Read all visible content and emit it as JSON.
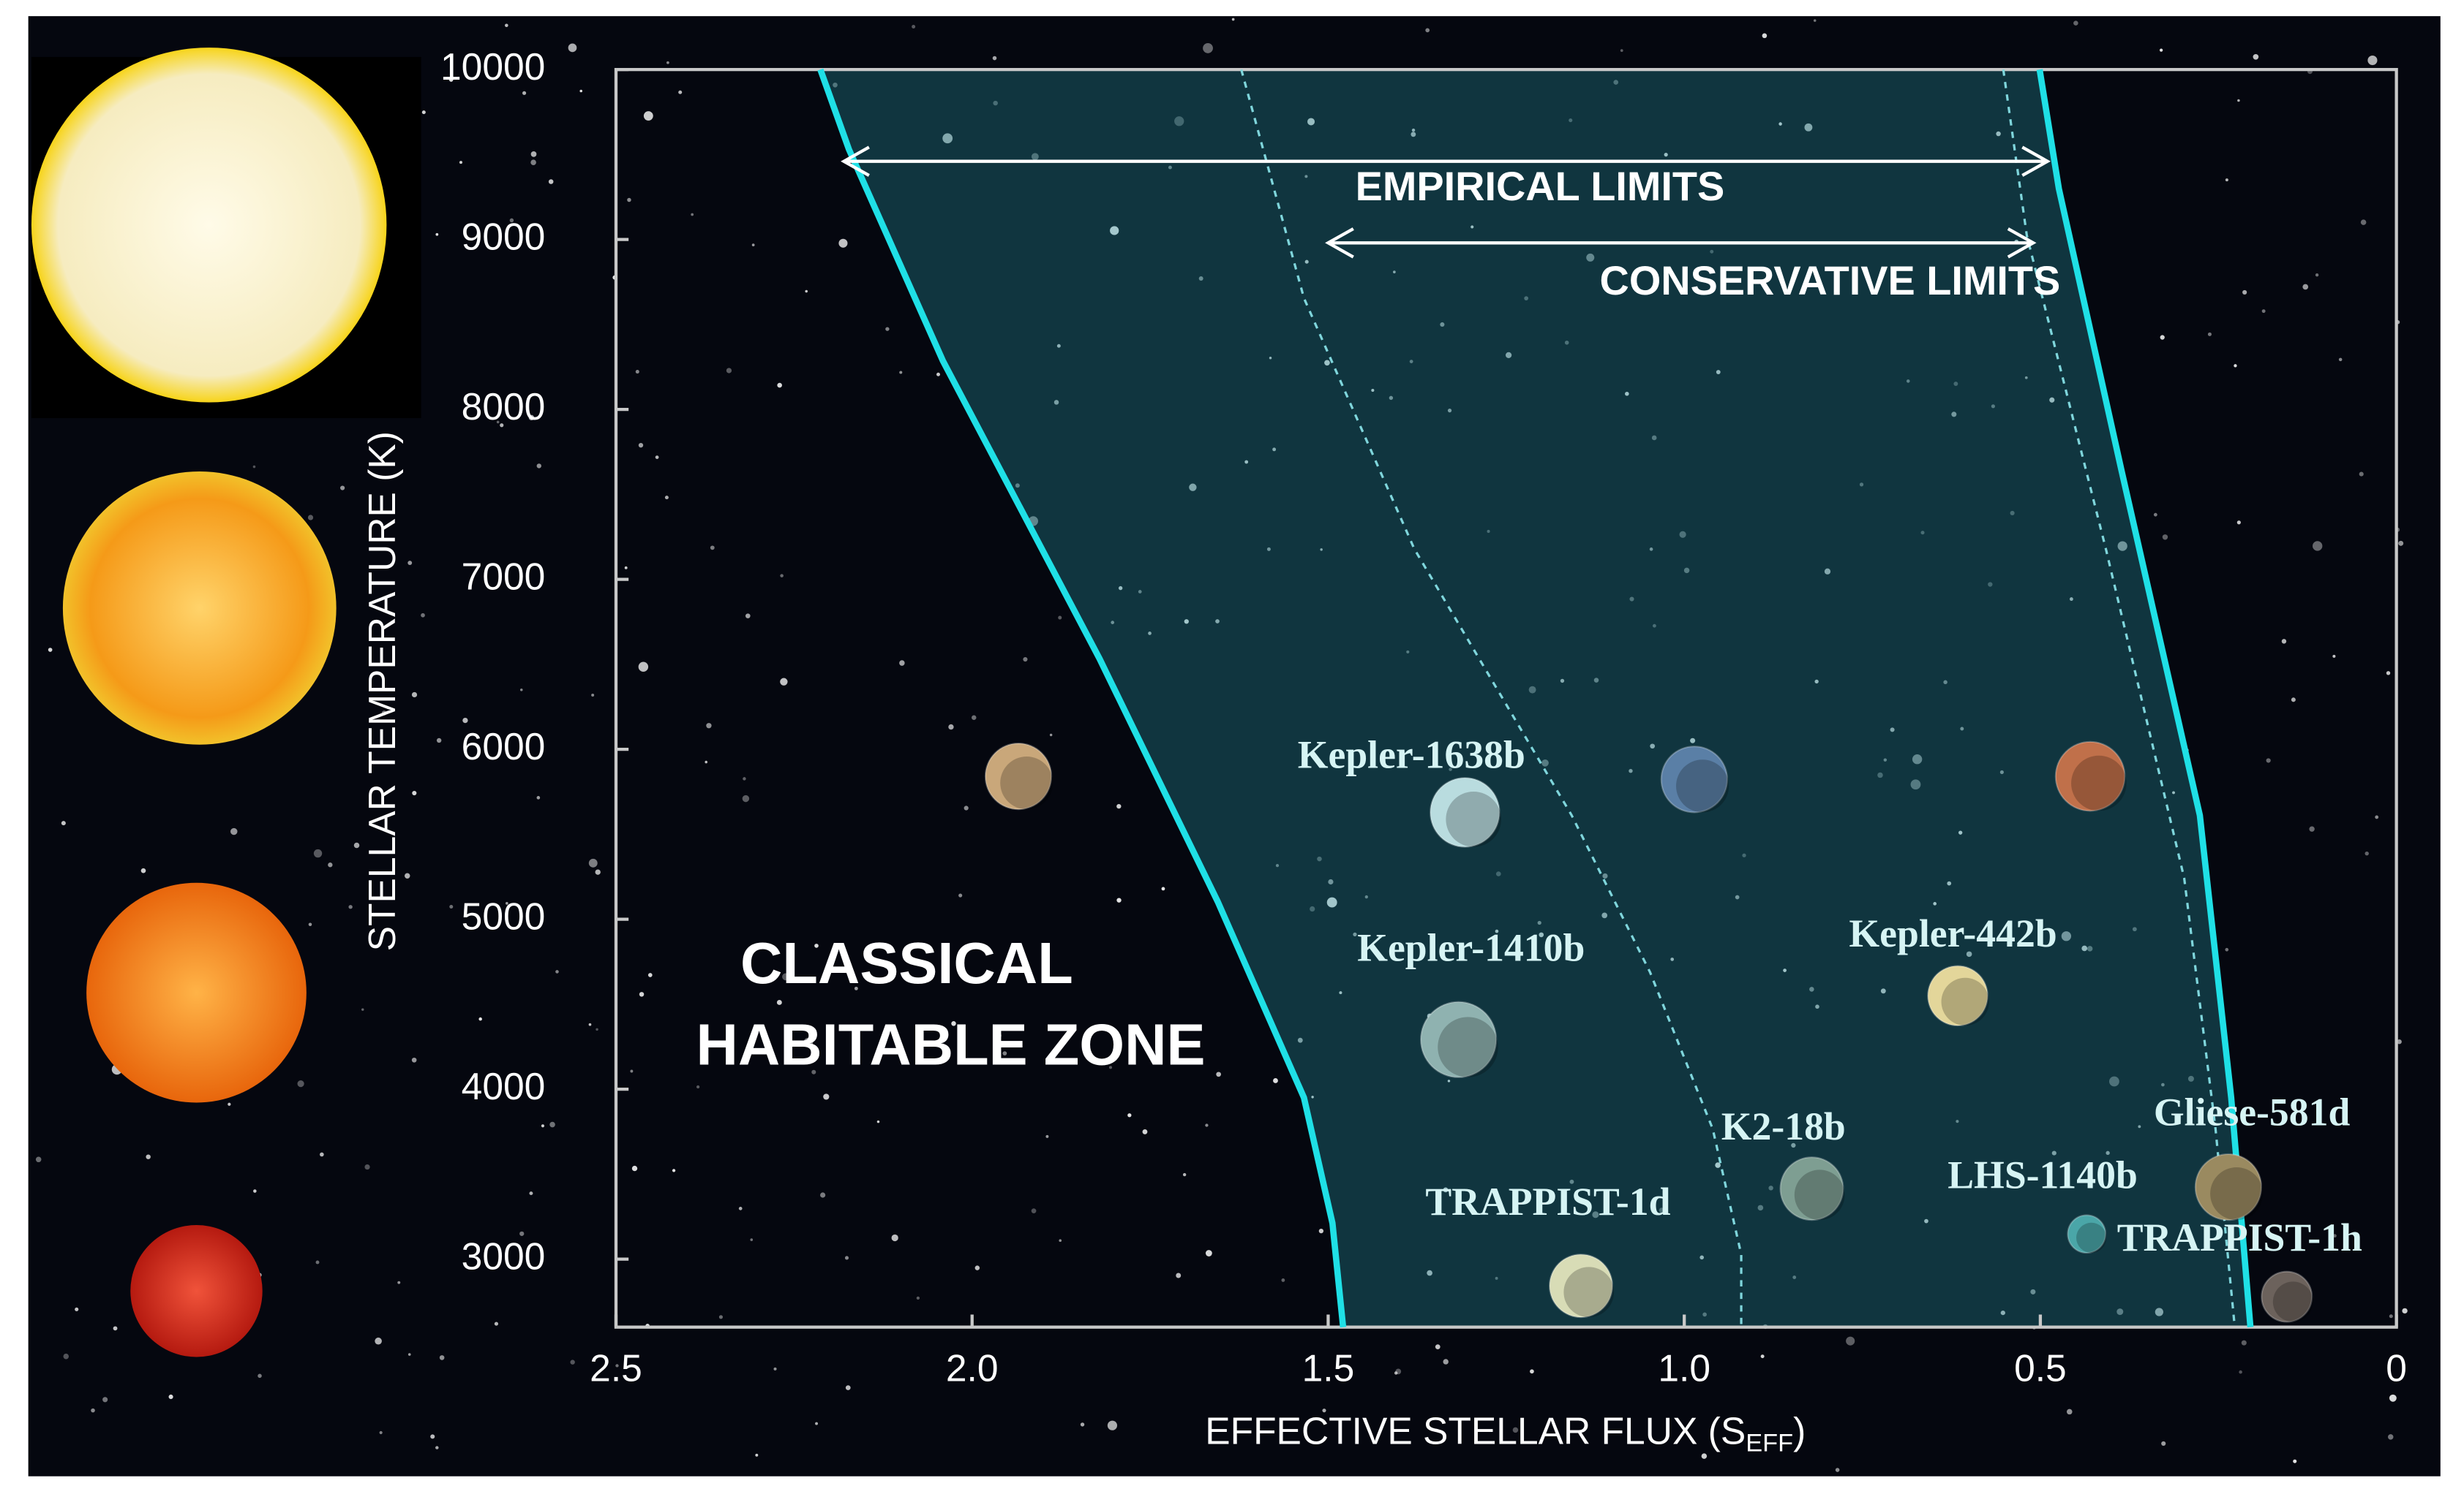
{
  "chart_data": {
    "type": "scatter",
    "xlabel": {
      "main": "EFFECTIVE STELLAR FLUX (S",
      "sub": "EFF",
      "end": ")"
    },
    "ylabel": "STELLAR TEMPERATURE (K)",
    "xlim": [
      2.5,
      0
    ],
    "ylim": [
      2600,
      10000
    ],
    "xticks": [
      2.5,
      {
        "value": 2,
        "label": "2.0"
      },
      1.5,
      {
        "value": 1,
        "label": "1.0"
      },
      0.5,
      0
    ],
    "yticks": [
      3000,
      4000,
      5000,
      6000,
      7000,
      8000,
      9000,
      10000
    ],
    "zone_label": [
      "CLASSICAL",
      "HABITABLE ZONE"
    ],
    "zone_fill": "rgba(40,150,160,0.33)",
    "annotations": [
      {
        "text": "EMPIRICAL LIMITS",
        "x": [
          2.18,
          0.49
        ],
        "y": 9460
      },
      {
        "text": "CONSERVATIVE LIMITS",
        "x": [
          1.5,
          0.51
        ],
        "y": 8980
      }
    ],
    "lines": [
      {
        "x": [
          2.213,
          2.173,
          2.041,
          1.821,
          1.655,
          1.534,
          1.494,
          1.479
        ],
        "y": [
          10000,
          9531,
          8286,
          6533,
          5103,
          3950,
          3212,
          2600
        ],
        "color": "#1fe0e6",
        "dashed": false
      },
      {
        "x": [
          1.622,
          1.534,
          1.379,
          1.158,
          1.048,
          0.96,
          0.92,
          0.92
        ],
        "y": [
          10000,
          8655,
          7179,
          5611,
          4688,
          3766,
          3028,
          2600
        ],
        "color": "#7fd6dc",
        "dashed": true
      },
      {
        "x": [
          0.501,
          0.474,
          0.386,
          0.276,
          0.232,
          0.205
        ],
        "y": [
          10000,
          9299,
          7640,
          5611,
          3950,
          2600
        ],
        "color": "#1fe0e6",
        "dashed": false
      },
      {
        "x": [
          0.552,
          0.519,
          0.408,
          0.298,
          0.254,
          0.227
        ],
        "y": [
          10000,
          9024,
          7179,
          5242,
          3766,
          2600
        ],
        "color": "#7fd6dc",
        "dashed": true
      }
    ],
    "planets": {
      "names": [
        null,
        "Kepler-1638b",
        null,
        null,
        "Kepler-1410b",
        "Kepler-442b",
        "K2-18b",
        "Gliese-581d",
        "LHS-1140b",
        "TRAPPIST-1d",
        "TRAPPIST-1h"
      ],
      "x": [
        1.935,
        1.308,
        0.986,
        0.43,
        1.317,
        0.616,
        0.821,
        0.236,
        0.435,
        1.145,
        0.154
      ],
      "y": [
        5841,
        5629,
        5823,
        5841,
        4292,
        4550,
        3415,
        3424,
        3148,
        2843,
        2779
      ],
      "colors": [
        "#c9a77a",
        "#b9dcdf",
        "#5a7fa6",
        "#c0704a",
        "#8fb2b0",
        "#e3d69a",
        "#7e9e92",
        "#9a8a60",
        "#4aa6a8",
        "#d8dcb6",
        "#6c625c"
      ]
    }
  }
}
